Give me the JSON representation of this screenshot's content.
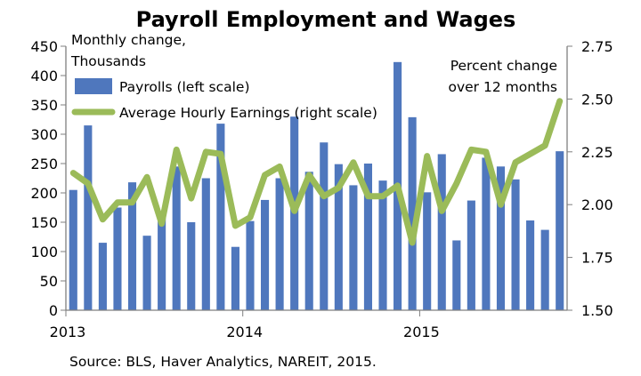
{
  "chart_data": {
    "type": "bar",
    "title": "Payroll Employment and Wages",
    "left_axis_note": [
      "Monthly change,",
      "Thousands"
    ],
    "right_axis_note": [
      "Percent change",
      "over 12 months"
    ],
    "source": "Source: BLS, Haver Analytics, NAREIT, 2015.",
    "x_labels": [
      {
        "label": "2013",
        "month_index": 0
      },
      {
        "label": "2014",
        "month_index": 12
      },
      {
        "label": "2015",
        "month_index": 24
      }
    ],
    "months": [
      "Jan 2013",
      "Feb 2013",
      "Mar 2013",
      "Apr 2013",
      "May 2013",
      "Jun 2013",
      "Jul 2013",
      "Aug 2013",
      "Sep 2013",
      "Oct 2013",
      "Nov 2013",
      "Dec 2013",
      "Jan 2014",
      "Feb 2014",
      "Mar 2014",
      "Apr 2014",
      "May 2014",
      "Jun 2014",
      "Jul 2014",
      "Aug 2014",
      "Sep 2014",
      "Oct 2014",
      "Nov 2014",
      "Dec 2014",
      "Jan 2015",
      "Feb 2015",
      "Mar 2015",
      "Apr 2015",
      "May 2015",
      "Jun 2015",
      "Jul 2015",
      "Aug 2015",
      "Sep 2015",
      "Oct 2015"
    ],
    "left_axis": {
      "ylim": [
        0,
        450
      ],
      "ticks": [
        0,
        50,
        100,
        150,
        200,
        250,
        300,
        350,
        400,
        450
      ]
    },
    "right_axis": {
      "ylim": [
        1.5,
        2.75
      ],
      "ticks": [
        "1.50",
        "1.75",
        "2.00",
        "2.25",
        "2.50",
        "2.75"
      ]
    },
    "series": [
      {
        "name": "Payrolls (left scale)",
        "kind": "bar",
        "axis": "left",
        "color": "#4F77BD",
        "values": [
          205,
          315,
          115,
          175,
          218,
          127,
          165,
          245,
          150,
          225,
          318,
          108,
          152,
          188,
          225,
          330,
          236,
          286,
          249,
          213,
          250,
          221,
          423,
          329,
          201,
          266,
          119,
          187,
          260,
          245,
          223,
          153,
          137,
          271
        ]
      },
      {
        "name": "Average Hourly Earnings (right scale)",
        "kind": "line",
        "axis": "right",
        "color": "#9BBB59",
        "values": [
          2.15,
          2.1,
          1.93,
          2.01,
          2.01,
          2.13,
          1.91,
          2.26,
          2.03,
          2.25,
          2.24,
          1.9,
          1.94,
          2.14,
          2.18,
          1.97,
          2.14,
          2.04,
          2.08,
          2.2,
          2.04,
          2.04,
          2.09,
          1.82,
          2.23,
          1.97,
          2.1,
          2.26,
          2.25,
          2.0,
          2.2,
          2.24,
          2.28,
          2.49
        ]
      }
    ],
    "legend_placement": "top-left",
    "grid": false
  }
}
